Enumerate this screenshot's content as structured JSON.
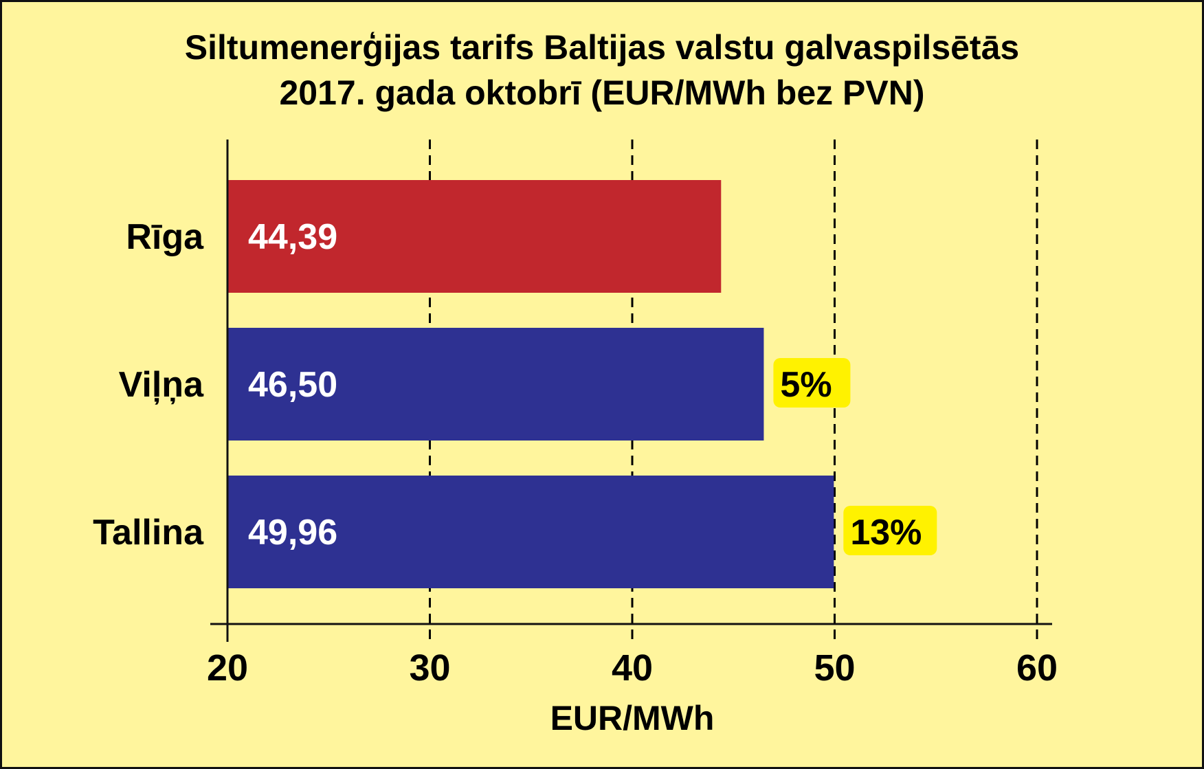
{
  "chart_data": {
    "type": "bar",
    "orientation": "horizontal",
    "title_lines": [
      "Siltumenerģijas tarifs Baltijas valstu galvaspilsētās",
      "2017. gada oktobrī (EUR/MWh bez PVN)"
    ],
    "xlabel": "EUR/MWh",
    "ylabel": "",
    "xlim": [
      20,
      60
    ],
    "xticks": [
      "20",
      "30",
      "40",
      "50",
      "60"
    ],
    "grid": "vertical dashed",
    "categories": [
      "Rīga",
      "Viļņa",
      "Tallina"
    ],
    "values": [
      44.39,
      46.5,
      49.96
    ],
    "value_labels": [
      "44,39",
      "46,50",
      "49,96"
    ],
    "difference_labels": [
      "",
      "5%",
      "13%"
    ],
    "bar_colors": [
      "#c1272d",
      "#2e3192",
      "#2e3192"
    ]
  },
  "colors": {
    "background": "#fff59d",
    "highlight": "#fff200",
    "axis": "#111111",
    "value_text": "#ffffff"
  }
}
